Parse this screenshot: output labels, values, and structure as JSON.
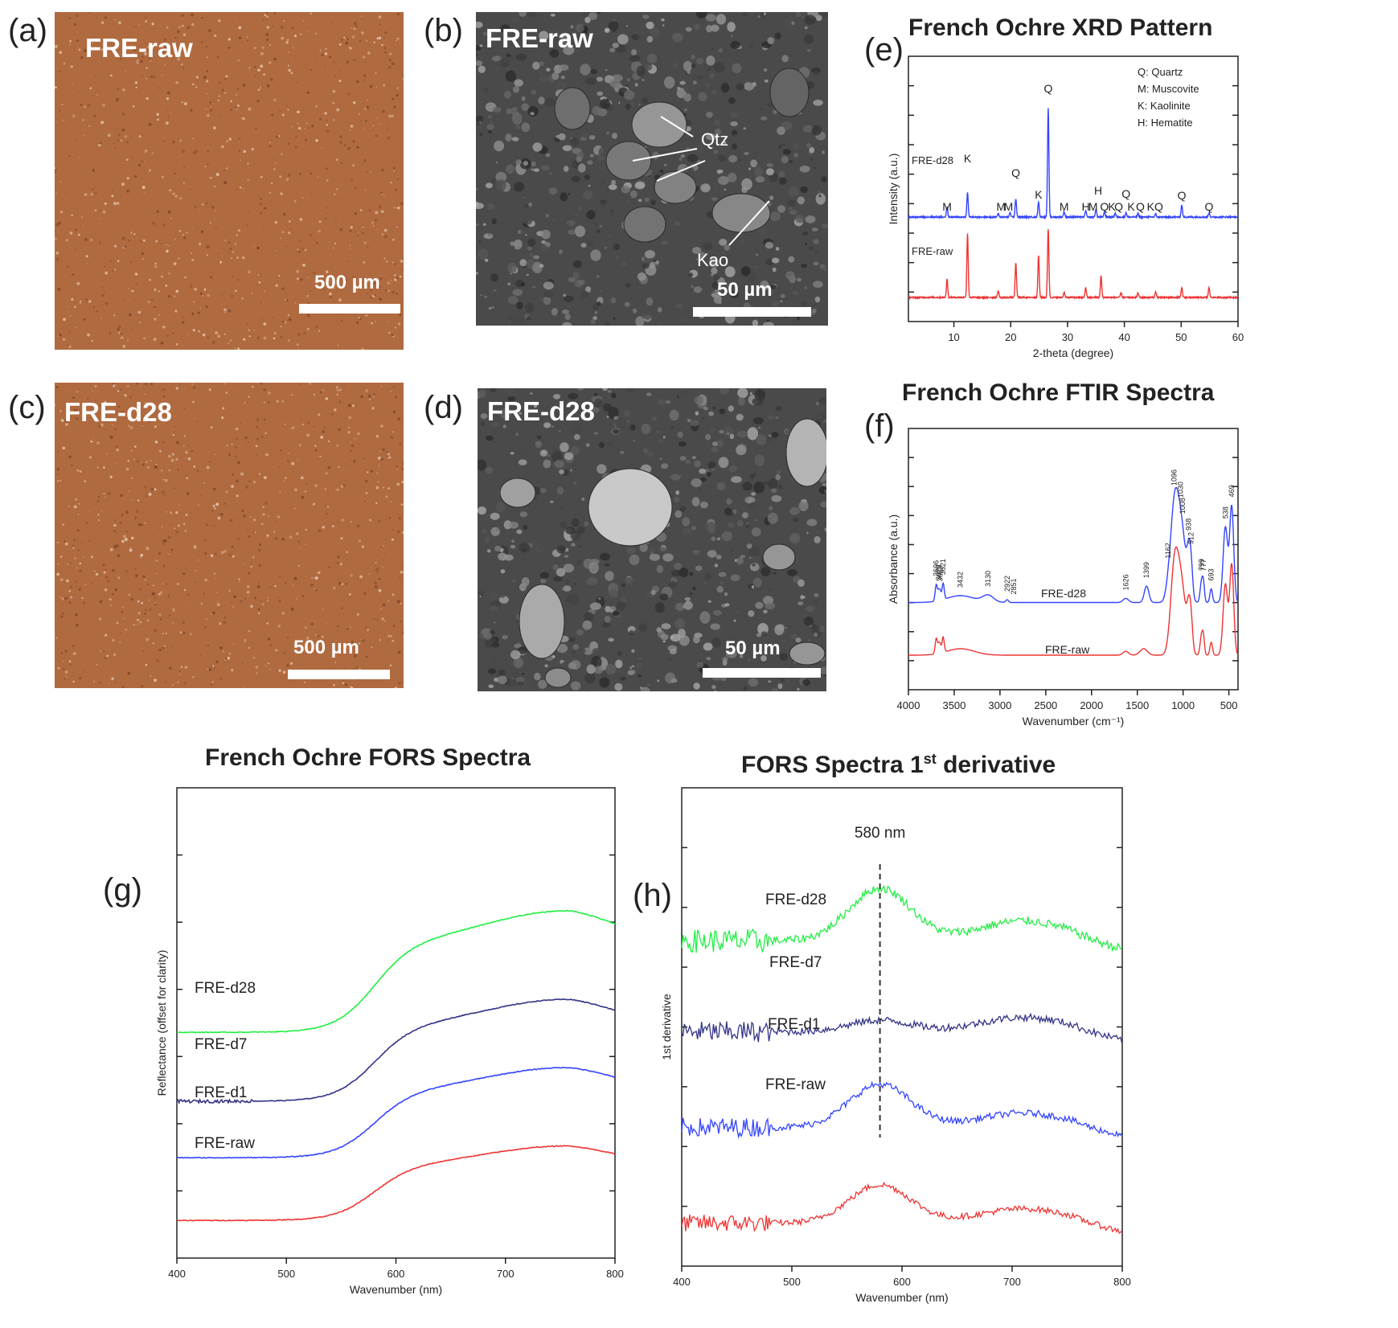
{
  "panels": {
    "a": {
      "letter": "(a)",
      "title": "FRE-raw",
      "scale": "500 µm"
    },
    "b": {
      "letter": "(b)",
      "title": "FRE-raw",
      "scale": "50 µm",
      "annot1": "Qtz",
      "annot2": "Kao"
    },
    "c": {
      "letter": "(c)",
      "title": "FRE-d28",
      "scale": "500 µm"
    },
    "d": {
      "letter": "(d)",
      "title": "FRE-d28",
      "scale": "50 µm"
    },
    "e": {
      "letter": "(e)"
    },
    "f": {
      "letter": "(f)"
    },
    "g": {
      "letter": "(g)"
    },
    "h": {
      "letter": "(h)"
    }
  },
  "colors": {
    "ochre": "#b06a3f",
    "sem": "#4a4a4a",
    "blue": "#3344ff",
    "red": "#ee3333",
    "green": "#22ee44",
    "navy": "#333388"
  },
  "chart_data": [
    {
      "type": "line",
      "title": "French Ochre XRD Pattern",
      "xlabel": "2-theta (degree)",
      "ylabel": "Intensity (a.u.)",
      "xlim": [
        2,
        60
      ],
      "xticks": [
        10,
        20,
        30,
        40,
        50,
        60
      ],
      "legend": [
        "Q: Quartz",
        "M: Muscovite",
        "K: Kaolinite",
        "H: Hematite"
      ],
      "series": [
        {
          "name": "FRE-d28",
          "color": "#3344ff",
          "peaks": [
            [
              8.8,
              0.22
            ],
            [
              12.4,
              0.55
            ],
            [
              17.8,
              0.08
            ],
            [
              19.9,
              0.1
            ],
            [
              20.9,
              0.42
            ],
            [
              24.9,
              0.35
            ],
            [
              26.6,
              2.45
            ],
            [
              29.4,
              0.12
            ],
            [
              33.2,
              0.14
            ],
            [
              35.0,
              0.18
            ],
            [
              36.5,
              0.12
            ],
            [
              38.4,
              0.09
            ],
            [
              40.3,
              0.1
            ],
            [
              42.4,
              0.08
            ],
            [
              45.5,
              0.07
            ],
            [
              50.1,
              0.28
            ],
            [
              54.9,
              0.1
            ]
          ]
        },
        {
          "name": "FRE-raw",
          "color": "#ee3333",
          "peaks": [
            [
              8.8,
              0.42
            ],
            [
              12.4,
              1.45
            ],
            [
              17.8,
              0.15
            ],
            [
              20.9,
              0.78
            ],
            [
              24.9,
              0.95
            ],
            [
              26.6,
              1.55
            ],
            [
              29.4,
              0.12
            ],
            [
              33.2,
              0.22
            ],
            [
              35.9,
              0.48
            ],
            [
              39.4,
              0.1
            ],
            [
              42.4,
              0.1
            ],
            [
              45.5,
              0.12
            ],
            [
              50.1,
              0.22
            ],
            [
              54.9,
              0.22
            ]
          ]
        }
      ],
      "peak_labels": [
        {
          "x": 8.8,
          "text": "M"
        },
        {
          "x": 12.4,
          "text": "K"
        },
        {
          "x": 18.3,
          "text": "M"
        },
        {
          "x": 19.6,
          "text": "M"
        },
        {
          "x": 20.9,
          "text": "Q"
        },
        {
          "x": 24.9,
          "text": "K"
        },
        {
          "x": 26.6,
          "text": "Q"
        },
        {
          "x": 29.4,
          "text": "M"
        },
        {
          "x": 33.2,
          "text": "H"
        },
        {
          "x": 35.4,
          "text": "H"
        },
        {
          "x": 34.5,
          "text": "M"
        },
        {
          "x": 36.5,
          "text": "Q"
        },
        {
          "x": 37.8,
          "text": "K"
        },
        {
          "x": 39.0,
          "text": "Q"
        },
        {
          "x": 40.3,
          "text": "Q"
        },
        {
          "x": 41.2,
          "text": "K"
        },
        {
          "x": 42.8,
          "text": "Q"
        },
        {
          "x": 45.4,
          "text": "KQ"
        },
        {
          "x": 50.1,
          "text": "Q"
        },
        {
          "x": 54.9,
          "text": "Q"
        }
      ]
    },
    {
      "type": "line",
      "title": "French Ochre FTIR Spectra",
      "xlabel": "Wavenumber (cm⁻¹)",
      "ylabel": "Absorbance (a.u.)",
      "xlim": [
        4000,
        400
      ],
      "xticks": [
        4000,
        3500,
        3000,
        2500,
        2000,
        1500,
        1000,
        500
      ],
      "series": [
        {
          "name": "FRE-d28",
          "color": "#3344ff"
        },
        {
          "name": "FRE-raw",
          "color": "#ee3333"
        }
      ],
      "peak_labels": [
        "3696",
        "3670",
        "3653",
        "3621",
        "3432",
        "3130",
        "2922",
        "2851",
        "1626",
        "1399",
        "1162",
        "1096",
        "1030",
        "1008",
        "938",
        "912",
        "799",
        "777",
        "693",
        "538",
        "469"
      ],
      "peak_positions": [
        3696,
        3670,
        3653,
        3621,
        3432,
        3130,
        2922,
        2851,
        1626,
        1399,
        1162,
        1096,
        1030,
        1008,
        938,
        912,
        799,
        777,
        693,
        538,
        469
      ]
    },
    {
      "type": "line",
      "title": "French Ochre FORS Spectra",
      "xlabel": "Wavenumber (nm)",
      "ylabel": "Reflectance (offset for clarity)",
      "xlim": [
        400,
        800
      ],
      "xticks": [
        400,
        500,
        600,
        700,
        800
      ],
      "series": [
        {
          "name": "FRE-d28",
          "color": "#22ee44",
          "offset": 3.6
        },
        {
          "name": "FRE-d7",
          "color": "#333388",
          "offset": 2.5
        },
        {
          "name": "FRE-d1",
          "color": "#3344ff",
          "offset": 1.6
        },
        {
          "name": "FRE-raw",
          "color": "#ee3333",
          "offset": 0.6
        }
      ]
    },
    {
      "type": "line",
      "title": "FORS Spectra 1st derivative",
      "title_main": "FORS Spectra 1",
      "title_sup": "st",
      "title_rest": " derivative",
      "xlabel": "Wavenumber (nm)",
      "ylabel": "1st derivative",
      "xlim": [
        400,
        800
      ],
      "xticks": [
        400,
        500,
        600,
        700,
        800
      ],
      "annotation": "580 nm",
      "annotation_x": 580,
      "series": [
        {
          "name": "FRE-d28",
          "color": "#22ee44",
          "offset": 3.4
        },
        {
          "name": "FRE-d7",
          "color": "#333388",
          "offset": 2.45
        },
        {
          "name": "FRE-d1",
          "color": "#3344ff",
          "offset": 1.45
        },
        {
          "name": "FRE-raw",
          "color": "#ee3333",
          "offset": 0.45
        }
      ]
    }
  ]
}
